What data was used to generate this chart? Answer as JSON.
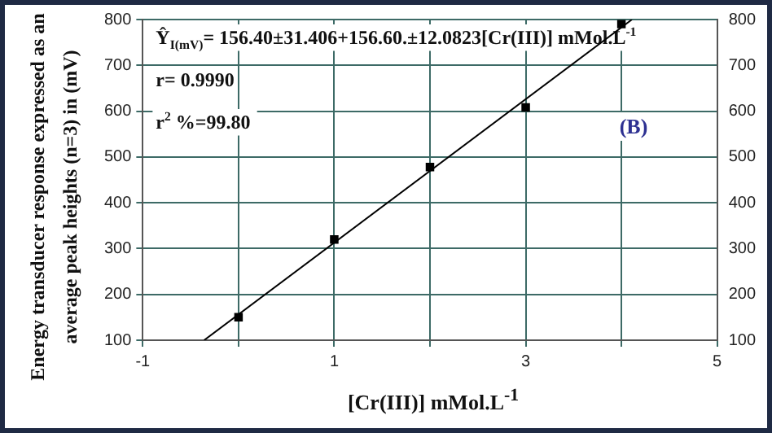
{
  "chart_data": {
    "type": "scatter",
    "xlabel": "[Cr(III)] mMol.L$^{-1}$",
    "ylabel": "Energy transducer response expressed as an average peak heights (n=3) in (mV)",
    "annotations": [
      "Ŷ$_{I(mV)}$= 156.40±31.406+156.60.±12.0823[Cr(III)] mMol.L$^{-1}$",
      "r= 0.9990",
      "r$^{2}$ %=99.80",
      "(B)"
    ],
    "series": [
      {
        "x": [
          0,
          1,
          2,
          3,
          4
        ],
        "values": [
          150,
          320,
          478,
          608,
          790
        ],
        "color": "#000000",
        "marker": "square"
      },
      {
        "type": "line",
        "x": [
          -0.36,
          4.11
        ],
        "values": [
          100,
          800
        ],
        "color": "#000000",
        "marker": "none"
      }
    ],
    "xlim": [
      -1,
      5
    ],
    "xticks": [
      -1,
      {
        "value": 0,
        "label": null
      },
      1,
      {
        "value": 2,
        "label": null
      },
      3,
      {
        "value": 4,
        "label": null
      },
      5
    ],
    "ylim": [
      100,
      800
    ],
    "yticks": [
      100,
      200,
      300,
      400,
      500,
      600,
      700,
      800
    ],
    "y2lim": [
      100,
      800
    ],
    "y2ticks": [
      100,
      200,
      300,
      400,
      500,
      600,
      700,
      800
    ],
    "grid": true,
    "legend": false
  }
}
